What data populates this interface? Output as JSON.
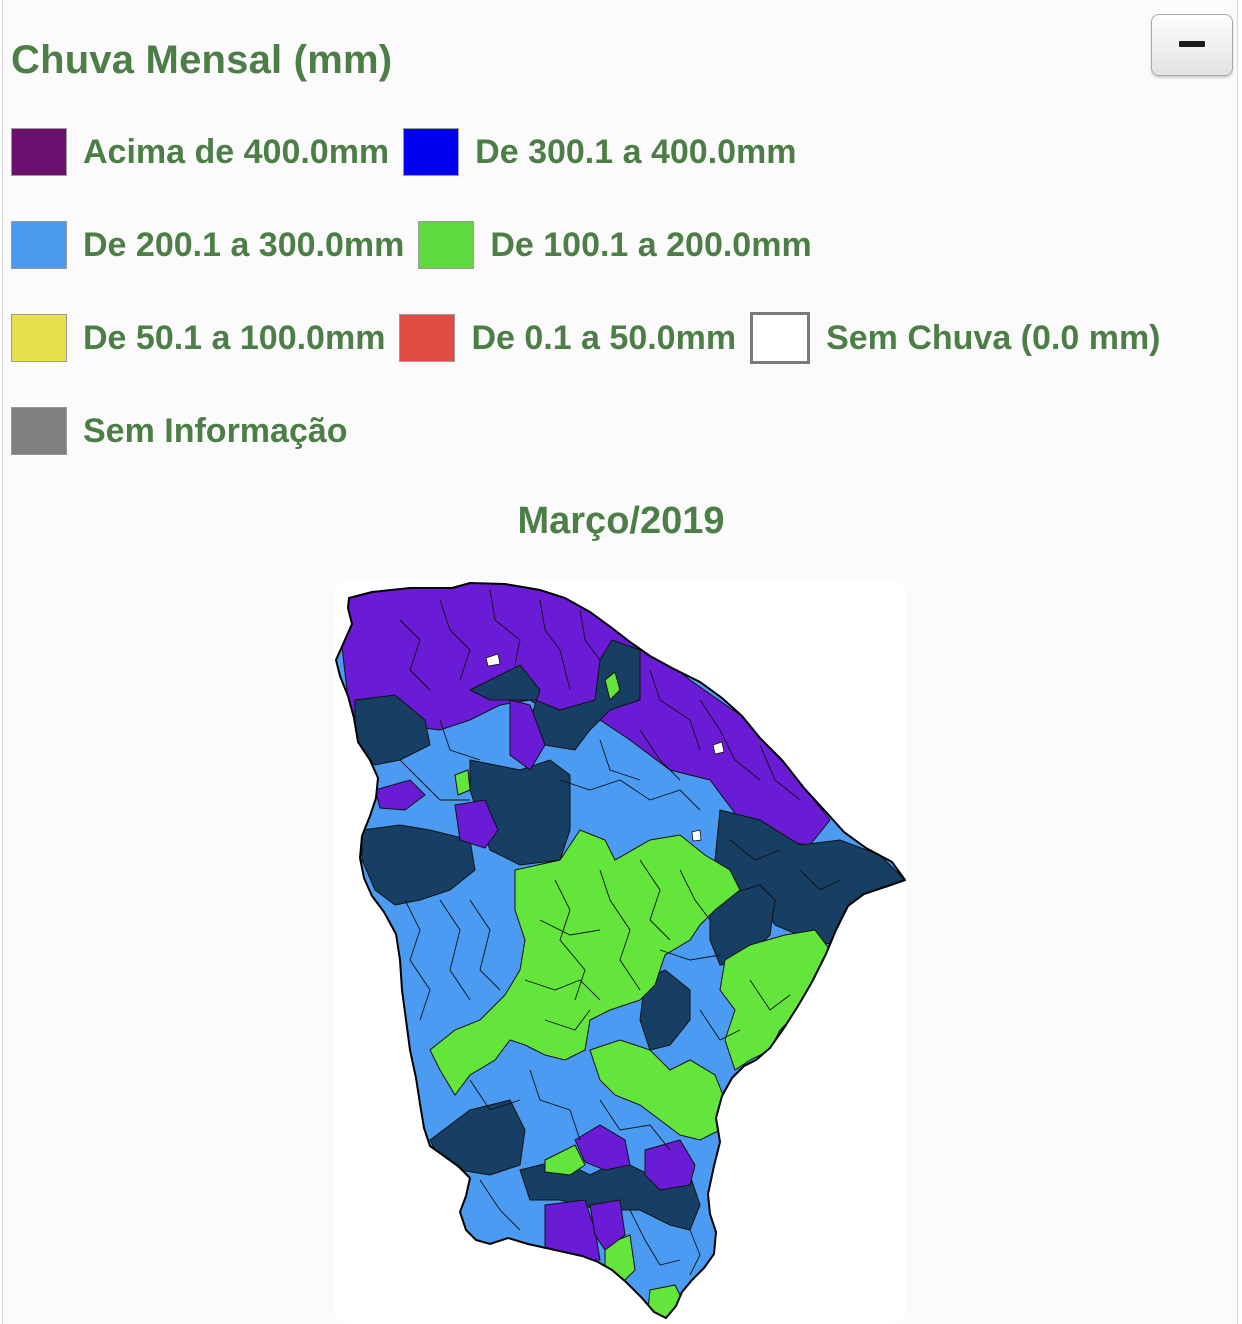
{
  "title": "Chuva Mensal (mm)",
  "collapse_icon": "minus-icon",
  "legend": [
    {
      "label": "Acima de 400.0mm",
      "color": "#6b1270"
    },
    {
      "label": "De 300.1 a 400.0mm",
      "color": "#0000f0"
    },
    {
      "label": "De 200.1 a 300.0mm",
      "color": "#4a9bf0"
    },
    {
      "label": "De 100.1 a 200.0mm",
      "color": "#5ed93e"
    },
    {
      "label": "De 50.1 a 100.0mm",
      "color": "#e6e04f"
    },
    {
      "label": "De 0.1 a 50.0mm",
      "color": "#e24b43"
    },
    {
      "label": "Sem Chuva (0.0 mm)",
      "color": "#ffffff"
    },
    {
      "label": "Sem Informação",
      "color": "#808080"
    }
  ],
  "map_title": "Março/2019",
  "map_colors": {
    "purple": "#6a1bd6",
    "light_blue": "#4b9bf2",
    "dark_navy": "#173f63",
    "green": "#63e53c",
    "border": "#111111"
  }
}
